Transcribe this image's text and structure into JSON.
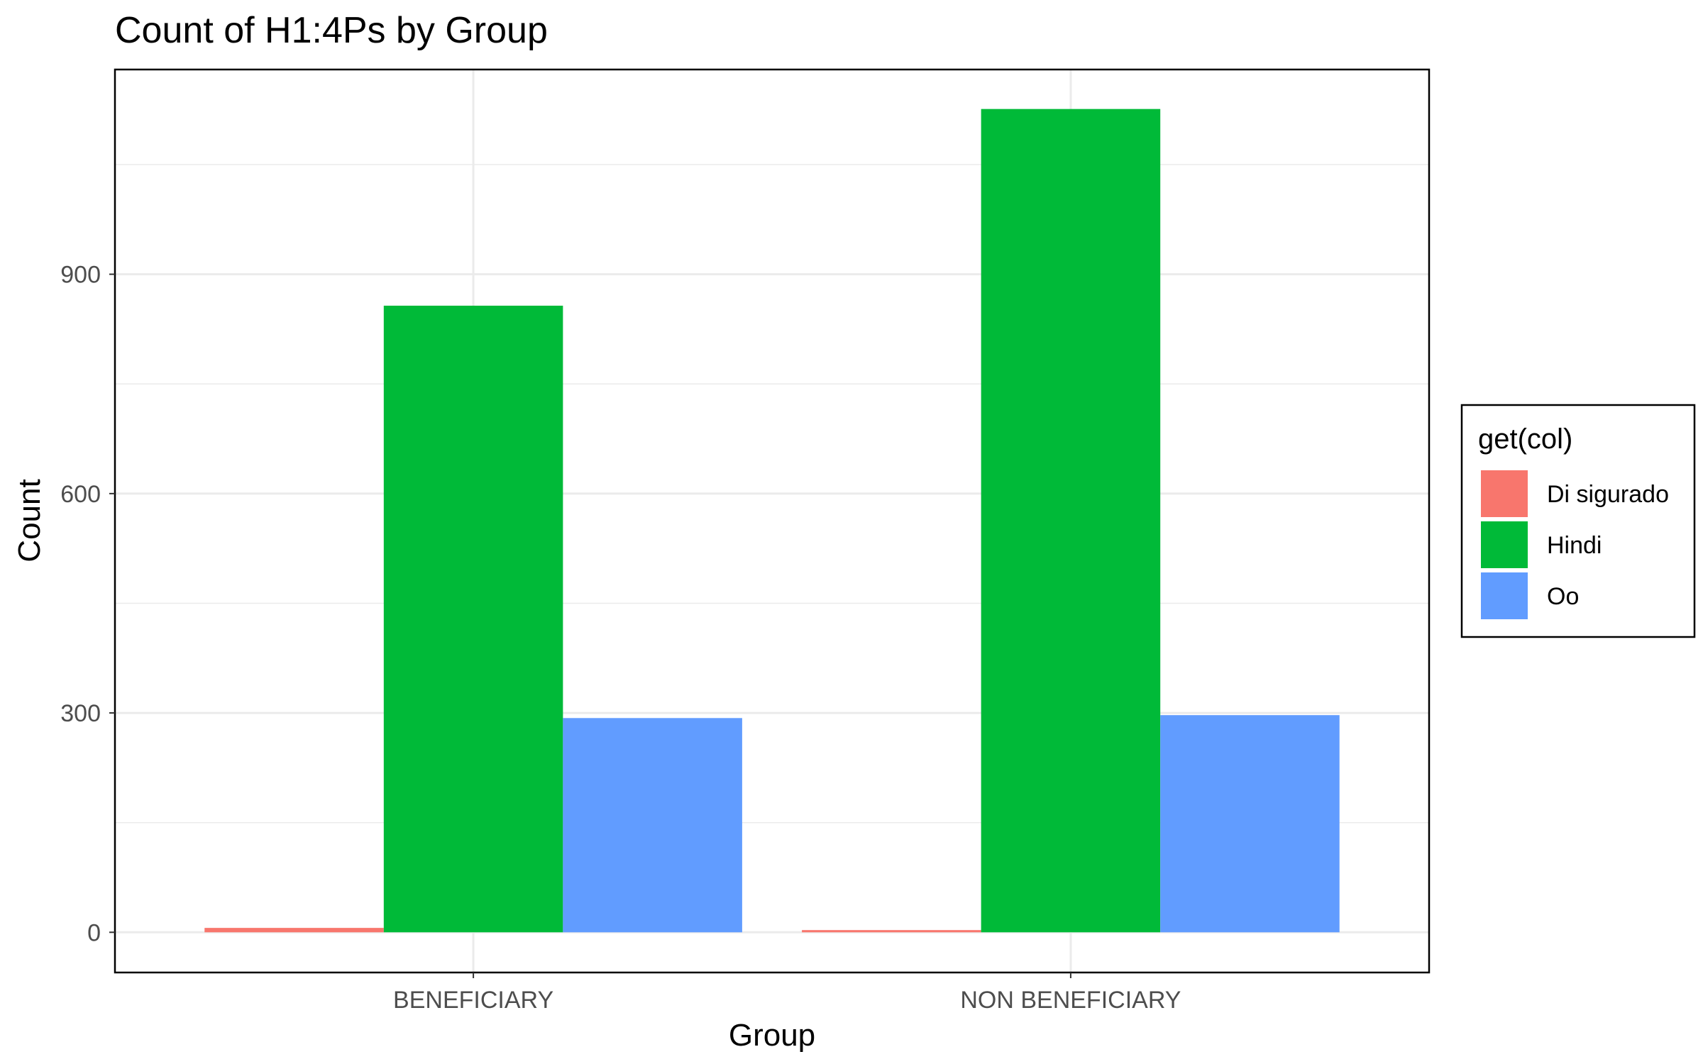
{
  "chart_data": {
    "type": "bar",
    "title": "Count of H1:4Ps by Group",
    "xlabel": "Group",
    "ylabel": "Count",
    "categories": [
      "BENEFICIARY",
      "NON BENEFICIARY"
    ],
    "series": [
      {
        "name": "Di sigurado",
        "values": [
          6,
          3
        ],
        "color": "#F8766D"
      },
      {
        "name": "Hindi",
        "values": [
          857,
          1126
        ],
        "color": "#00BA38"
      },
      {
        "name": "Oo",
        "values": [
          293,
          297
        ],
        "color": "#619CFF"
      }
    ],
    "ylim": [
      -55,
      1180
    ],
    "yticks": [
      0,
      300,
      600,
      900
    ],
    "y_minor_ticks": [
      150,
      450,
      750,
      1050
    ],
    "grid": true,
    "legend": {
      "title": "get(col)",
      "placement": "right"
    }
  }
}
